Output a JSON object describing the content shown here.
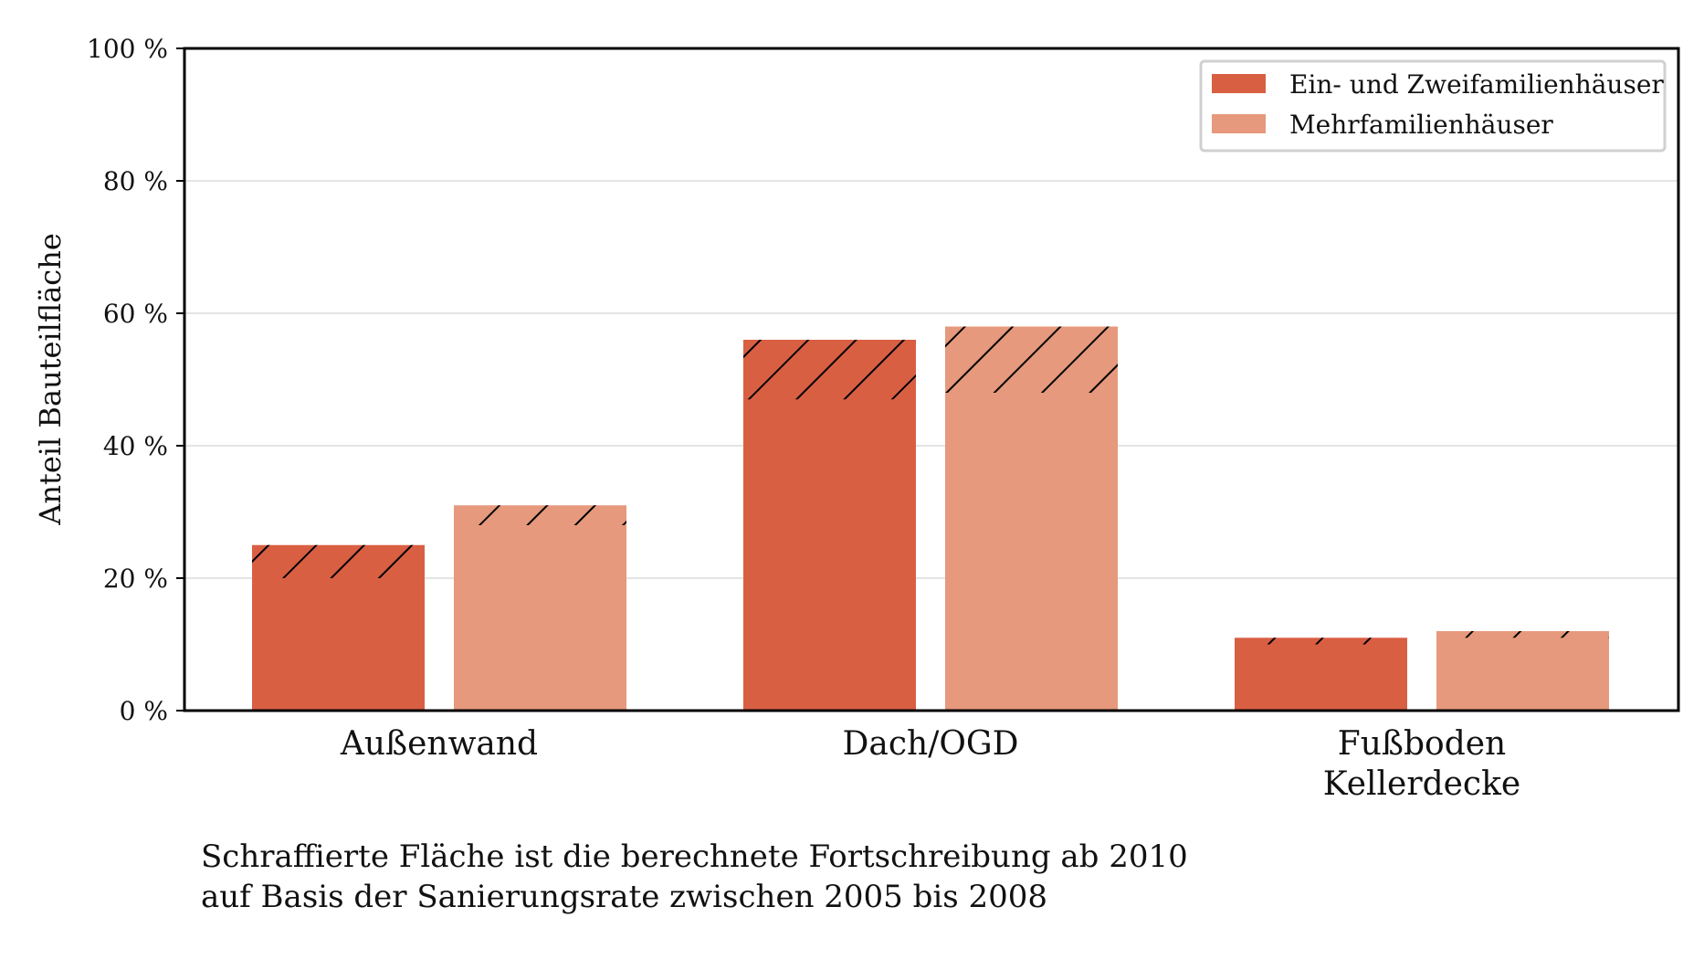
{
  "chart_data": {
    "type": "bar",
    "ylabel": "Anteil Bauteilfläche",
    "ylim": [
      0,
      100
    ],
    "yticks": [
      "0 %",
      "20 %",
      "40 %",
      "60 %",
      "80 %",
      "100 %"
    ],
    "ytick_values": [
      0,
      20,
      40,
      60,
      80,
      100
    ],
    "grid": "horizontal",
    "legend_position": "top-right",
    "categories": [
      [
        "Außenwand"
      ],
      [
        "Dach/OGD"
      ],
      [
        "Fußboden",
        "Kellerdecke"
      ]
    ],
    "series": [
      {
        "name": "Ein- und Zweifamilienhäuser",
        "color": "#d95f43",
        "values": [
          25,
          56,
          11
        ],
        "hatched_from": [
          20,
          47,
          10
        ]
      },
      {
        "name": "Mehrfamilienhäuser",
        "color": "#e6997c",
        "values": [
          31,
          58,
          12
        ],
        "hatched_from": [
          28,
          48,
          11
        ]
      }
    ]
  },
  "footnote": {
    "line1": "Schraffierte Fläche ist die berechnete Fortschreibung ab 2010",
    "line2": "auf Basis der Sanierungsrate zwischen 2005 bis 2008"
  }
}
